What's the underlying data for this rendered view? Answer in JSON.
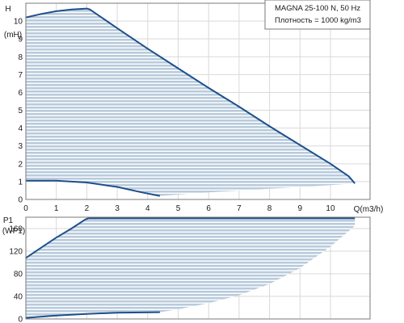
{
  "chart_data": [
    {
      "type": "area",
      "name": "head",
      "ylabel_top": "H",
      "ylabel_unit": "(mH)",
      "xlabel": "Q(m3/h)",
      "xlim": [
        0,
        11.3
      ],
      "ylim": [
        0,
        11
      ],
      "x_ticks": [
        "0",
        "1",
        "2",
        "3",
        "4",
        "5",
        "6",
        "7",
        "8",
        "9",
        "10"
      ],
      "x_tick_values": [
        0,
        1,
        2,
        3,
        4,
        5,
        6,
        7,
        8,
        9,
        10
      ],
      "y_ticks": [
        "0",
        "1",
        "2",
        "3",
        "4",
        "5",
        "6",
        "7",
        "8",
        "9",
        "10"
      ],
      "y_tick_values": [
        0,
        1,
        2,
        3,
        4,
        5,
        6,
        7,
        8,
        9,
        10
      ],
      "grid": true,
      "series": [
        {
          "role": "max-curve",
          "x": [
            0,
            0.5,
            1,
            1.5,
            2,
            2.1,
            3,
            4,
            5,
            6,
            7,
            8,
            9,
            10,
            10.6,
            10.8
          ],
          "y": [
            10.2,
            10.4,
            10.55,
            10.65,
            10.7,
            10.65,
            9.6,
            8.45,
            7.35,
            6.25,
            5.2,
            4.1,
            3.05,
            2,
            1.3,
            0.9
          ]
        },
        {
          "role": "min-curve",
          "x": [
            0,
            1,
            1.5,
            2,
            3,
            3.8,
            4.4
          ],
          "y": [
            1.05,
            1.05,
            1.0,
            0.95,
            0.7,
            0.4,
            0.2
          ]
        },
        {
          "role": "bottom-boundary",
          "x": [
            4.4,
            6,
            8,
            10,
            10.8
          ],
          "y": [
            0.2,
            0.4,
            0.6,
            0.8,
            0.9
          ]
        }
      ],
      "legend": {
        "lines": [
          "MAGNA 25-100 N, 50 Hz",
          "Плотность = 1000 kg/m3"
        ],
        "placement": "top-right"
      }
    },
    {
      "type": "area",
      "name": "power",
      "ylabel_top": "P1",
      "ylabel_unit": "(WP1)",
      "xlim": [
        0,
        11.3
      ],
      "ylim": [
        0,
        180
      ],
      "y_ticks": [
        "0",
        "40",
        "80",
        "120",
        "160"
      ],
      "y_tick_values": [
        0,
        40,
        80,
        120,
        160
      ],
      "grid": true,
      "series": [
        {
          "role": "max-curve",
          "x": [
            0,
            0.5,
            1,
            1.5,
            1.95,
            2.05,
            3,
            4,
            5,
            6,
            7,
            8,
            9,
            10,
            10.8
          ],
          "y": [
            108,
            126,
            144,
            160,
            176,
            178,
            178,
            178,
            178,
            178,
            178,
            178,
            178,
            178,
            178
          ]
        },
        {
          "role": "min-curve",
          "x": [
            0,
            1,
            2,
            3,
            4.4
          ],
          "y": [
            2,
            6,
            9,
            11,
            12
          ]
        },
        {
          "role": "bottom-boundary",
          "x": [
            4.4,
            5,
            6,
            7,
            8,
            9,
            10,
            10.8
          ],
          "y": [
            12,
            17,
            28,
            42,
            62,
            90,
            128,
            165
          ]
        }
      ]
    }
  ],
  "colors": {
    "curve": "#1d4f8c",
    "fill": "#b9cbdc",
    "stripe": "#ffffff",
    "grid": "#d9d9d9",
    "frame": "#7a7a7a"
  }
}
